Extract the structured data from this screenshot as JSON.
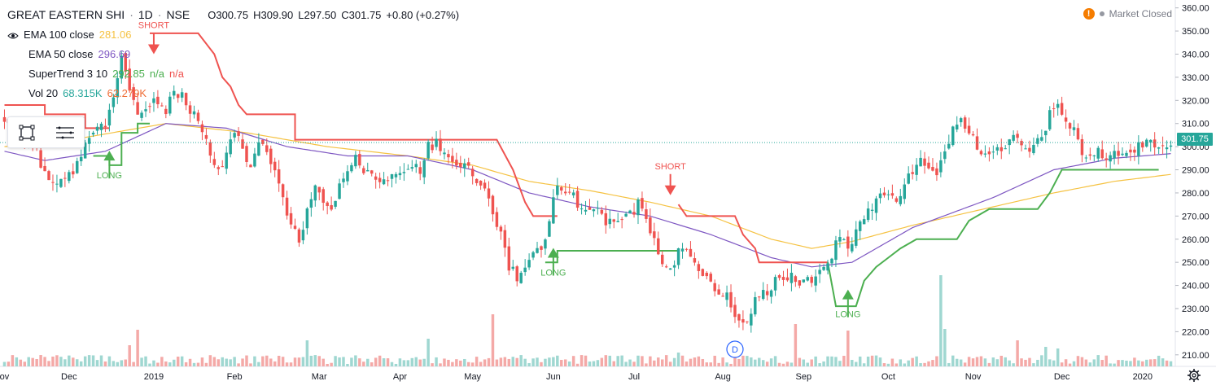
{
  "header": {
    "symbol": "GREAT EASTERN SHI",
    "sep1": "·",
    "interval": "1D",
    "sep2": "·",
    "exchange": "NSE",
    "open": "O300.75",
    "high": "H309.90",
    "low": "L297.50",
    "close": "C301.75",
    "change": "+0.80 (+0.27%)"
  },
  "indicators": [
    {
      "label": "EMA 100 close",
      "value": "281.06",
      "color": "#f5c242"
    },
    {
      "label": "EMA 50 close",
      "value": "296.69",
      "color": "#7e57c2"
    },
    {
      "label": "SuperTrend 3 10",
      "value": "292.85",
      "value2": "n/a",
      "value3": "n/a",
      "color": "#4caf50",
      "color2": "#ef5350"
    },
    {
      "label": "Vol 20",
      "value": "68.315K",
      "value2": "62.279K",
      "color": "#26a69a",
      "color2": "#ef6c35"
    }
  ],
  "status": {
    "warning_icon": "!",
    "text": "Market Closed"
  },
  "last_price": "301.75",
  "colors": {
    "up": "#26a69a",
    "down": "#ef5350",
    "supertrend_up": "#4caf50",
    "supertrend_down": "#ef5350",
    "ema100": "#f5c242",
    "ema50": "#7e57c2",
    "vol_up": "#9fd7d1",
    "vol_down": "#f4a9a7"
  },
  "chart_data": {
    "type": "candlestick",
    "title": "GREAT EASTERN SHI · 1D · NSE",
    "ylim": [
      205,
      362
    ],
    "y_ticks": [
      210,
      220,
      230,
      240,
      250,
      260,
      270,
      280,
      290,
      300,
      310,
      320,
      330,
      340,
      350,
      360
    ],
    "y_tick_labels": [
      "210.00",
      "220.00",
      "230.00",
      "240.00",
      "250.00",
      "260.00",
      "270.00",
      "280.00",
      "290.00",
      "300.00",
      "310.00",
      "320.00",
      "330.00",
      "340.00",
      "350.00",
      "360.00"
    ],
    "x_labels": [
      "ov",
      "Dec",
      "2019",
      "Feb",
      "Mar",
      "Apr",
      "May",
      "Jun",
      "Jul",
      "Aug",
      "Sep",
      "Oct",
      "Nov",
      "Dec",
      "2020"
    ],
    "x_label_index": [
      0,
      16,
      37,
      57,
      78,
      98,
      116,
      136,
      156,
      178,
      198,
      219,
      240,
      262,
      282
    ],
    "total_bars": 290,
    "close_anchors": [
      [
        0,
        310
      ],
      [
        4,
        306
      ],
      [
        8,
        298
      ],
      [
        10,
        288
      ],
      [
        14,
        284
      ],
      [
        17,
        290
      ],
      [
        20,
        300
      ],
      [
        23,
        310
      ],
      [
        25,
        308
      ],
      [
        27,
        322
      ],
      [
        29,
        338
      ],
      [
        31,
        324
      ],
      [
        33,
        312
      ],
      [
        35,
        318
      ],
      [
        38,
        320
      ],
      [
        40,
        316
      ],
      [
        42,
        324
      ],
      [
        44,
        322
      ],
      [
        47,
        314
      ],
      [
        49,
        306
      ],
      [
        51,
        298
      ],
      [
        53,
        288
      ],
      [
        55,
        296
      ],
      [
        57,
        306
      ],
      [
        59,
        300
      ],
      [
        61,
        290
      ],
      [
        63,
        300
      ],
      [
        65,
        300
      ],
      [
        67,
        288
      ],
      [
        69,
        278
      ],
      [
        71,
        266
      ],
      [
        73,
        260
      ],
      [
        75,
        272
      ],
      [
        77,
        282
      ],
      [
        79,
        276
      ],
      [
        81,
        272
      ],
      [
        83,
        282
      ],
      [
        85,
        288
      ],
      [
        87,
        296
      ],
      [
        89,
        290
      ],
      [
        91,
        288
      ],
      [
        93,
        286
      ],
      [
        95,
        284
      ],
      [
        97,
        290
      ],
      [
        99,
        288
      ],
      [
        101,
        292
      ],
      [
        103,
        290
      ],
      [
        105,
        300
      ],
      [
        107,
        302
      ],
      [
        109,
        298
      ],
      [
        111,
        294
      ],
      [
        113,
        292
      ],
      [
        115,
        290
      ],
      [
        117,
        286
      ],
      [
        119,
        280
      ],
      [
        121,
        272
      ],
      [
        123,
        262
      ],
      [
        125,
        248
      ],
      [
        127,
        244
      ],
      [
        129,
        248
      ],
      [
        131,
        252
      ],
      [
        133,
        256
      ],
      [
        135,
        268
      ],
      [
        137,
        284
      ],
      [
        139,
        282
      ],
      [
        141,
        278
      ],
      [
        143,
        272
      ],
      [
        145,
        274
      ],
      [
        147,
        272
      ],
      [
        149,
        268
      ],
      [
        151,
        266
      ],
      [
        153,
        268
      ],
      [
        155,
        270
      ],
      [
        157,
        276
      ],
      [
        159,
        268
      ],
      [
        161,
        260
      ],
      [
        163,
        248
      ],
      [
        165,
        246
      ],
      [
        167,
        254
      ],
      [
        169,
        256
      ],
      [
        171,
        248
      ],
      [
        173,
        244
      ],
      [
        175,
        240
      ],
      [
        177,
        238
      ],
      [
        179,
        236
      ],
      [
        181,
        226
      ],
      [
        183,
        222
      ],
      [
        185,
        230
      ],
      [
        187,
        236
      ],
      [
        189,
        238
      ],
      [
        191,
        242
      ],
      [
        193,
        244
      ],
      [
        195,
        244
      ],
      [
        197,
        240
      ],
      [
        199,
        242
      ],
      [
        201,
        244
      ],
      [
        203,
        246
      ],
      [
        205,
        252
      ],
      [
        207,
        262
      ],
      [
        209,
        256
      ],
      [
        211,
        262
      ],
      [
        213,
        270
      ],
      [
        215,
        274
      ],
      [
        217,
        282
      ],
      [
        219,
        280
      ],
      [
        221,
        278
      ],
      [
        223,
        284
      ],
      [
        225,
        290
      ],
      [
        227,
        294
      ],
      [
        229,
        292
      ],
      [
        231,
        290
      ],
      [
        233,
        296
      ],
      [
        235,
        308
      ],
      [
        237,
        314
      ],
      [
        239,
        306
      ],
      [
        241,
        300
      ],
      [
        243,
        298
      ],
      [
        245,
        296
      ],
      [
        247,
        300
      ],
      [
        249,
        302
      ],
      [
        251,
        304
      ],
      [
        253,
        298
      ],
      [
        255,
        300
      ],
      [
        257,
        304
      ],
      [
        259,
        314
      ],
      [
        261,
        320
      ],
      [
        263,
        312
      ],
      [
        265,
        306
      ],
      [
        267,
        298
      ],
      [
        269,
        296
      ],
      [
        271,
        298
      ],
      [
        273,
        296
      ],
      [
        275,
        298
      ],
      [
        277,
        296
      ],
      [
        279,
        298
      ],
      [
        281,
        300
      ],
      [
        283,
        302
      ],
      [
        285,
        300
      ],
      [
        287,
        302
      ],
      [
        289,
        301.75
      ]
    ],
    "ema100_anchors": [
      [
        0,
        300
      ],
      [
        20,
        304
      ],
      [
        40,
        310
      ],
      [
        60,
        306
      ],
      [
        80,
        300
      ],
      [
        100,
        296
      ],
      [
        116,
        292
      ],
      [
        130,
        285
      ],
      [
        145,
        281
      ],
      [
        160,
        276
      ],
      [
        175,
        270
      ],
      [
        190,
        260
      ],
      [
        200,
        256
      ],
      [
        210,
        259
      ],
      [
        225,
        266
      ],
      [
        245,
        274
      ],
      [
        260,
        280
      ],
      [
        275,
        285
      ],
      [
        289,
        288
      ]
    ],
    "ema50_anchors": [
      [
        0,
        298
      ],
      [
        10,
        294
      ],
      [
        25,
        298
      ],
      [
        40,
        310
      ],
      [
        55,
        308
      ],
      [
        70,
        300
      ],
      [
        85,
        296
      ],
      [
        100,
        296
      ],
      [
        116,
        290
      ],
      [
        130,
        280
      ],
      [
        145,
        274
      ],
      [
        160,
        270
      ],
      [
        175,
        262
      ],
      [
        190,
        252
      ],
      [
        200,
        248
      ],
      [
        210,
        250
      ],
      [
        225,
        265
      ],
      [
        245,
        278
      ],
      [
        260,
        290
      ],
      [
        275,
        295
      ],
      [
        289,
        297
      ]
    ],
    "supertrend_segments": [
      {
        "dir": "down",
        "points": [
          [
            0,
            318
          ],
          [
            10,
            318
          ],
          [
            10,
            314
          ],
          [
            20,
            314
          ],
          [
            20,
            308
          ],
          [
            26,
            308
          ]
        ]
      },
      {
        "dir": "up",
        "points": [
          [
            22,
            296
          ],
          [
            26,
            296
          ],
          [
            26,
            292
          ],
          [
            29,
            292
          ],
          [
            29,
            306
          ],
          [
            33,
            306
          ],
          [
            33,
            310
          ],
          [
            36,
            310
          ]
        ]
      },
      {
        "dir": "down",
        "points": [
          [
            36,
            349
          ],
          [
            48,
            349
          ],
          [
            52,
            340
          ],
          [
            54,
            330
          ],
          [
            56,
            326
          ],
          [
            58,
            318
          ],
          [
            60,
            314
          ],
          [
            72,
            314
          ],
          [
            72,
            303
          ],
          [
            122,
            303
          ],
          [
            126,
            290
          ],
          [
            129,
            276
          ],
          [
            131,
            270
          ],
          [
            137,
            270
          ]
        ]
      },
      {
        "dir": "up",
        "points": [
          [
            134,
            250
          ],
          [
            137,
            250
          ],
          [
            137,
            255
          ],
          [
            167,
            255
          ]
        ]
      },
      {
        "dir": "down",
        "points": [
          [
            167,
            275
          ],
          [
            169,
            270
          ],
          [
            181,
            270
          ],
          [
            183,
            262
          ],
          [
            186,
            256
          ],
          [
            187,
            250
          ],
          [
            204,
            250
          ]
        ]
      },
      {
        "dir": "up",
        "points": [
          [
            204,
            250
          ],
          [
            206,
            231
          ],
          [
            211,
            231
          ],
          [
            213,
            242
          ],
          [
            216,
            248
          ],
          [
            219,
            252
          ],
          [
            222,
            256
          ],
          [
            226,
            260
          ],
          [
            236,
            260
          ],
          [
            239,
            268
          ],
          [
            244,
            273
          ],
          [
            247,
            273
          ],
          [
            256,
            273
          ],
          [
            259,
            280
          ],
          [
            262,
            290
          ],
          [
            286,
            290
          ]
        ]
      }
    ],
    "signals": [
      {
        "type": "LONG",
        "bar": 26,
        "price": 294
      },
      {
        "type": "SHORT",
        "bar": 37,
        "price": 340
      },
      {
        "type": "LONG",
        "bar": 136,
        "price": 252
      },
      {
        "type": "SHORT",
        "bar": 165,
        "price": 279
      },
      {
        "type": "LONG",
        "bar": 209,
        "price": 234
      }
    ],
    "volume_spikes": [
      [
        31,
        26
      ],
      [
        33,
        45
      ],
      [
        75,
        32
      ],
      [
        105,
        34
      ],
      [
        121,
        64
      ],
      [
        167,
        17
      ],
      [
        196,
        52
      ],
      [
        209,
        44
      ],
      [
        232,
        112
      ],
      [
        233,
        46
      ],
      [
        251,
        32
      ],
      [
        258,
        24
      ],
      [
        261,
        22
      ]
    ],
    "event_marker": {
      "label": "D",
      "bar": 181
    }
  }
}
